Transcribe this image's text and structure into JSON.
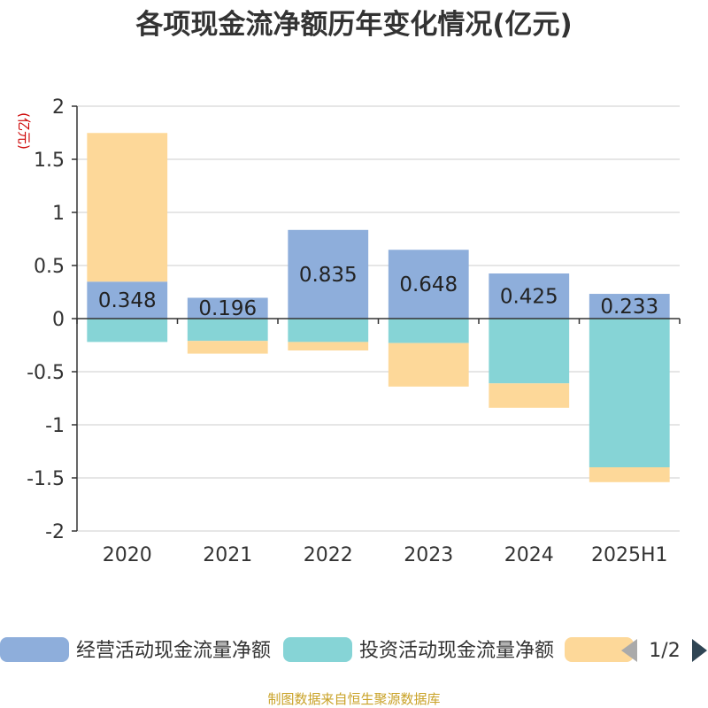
{
  "chart_data": {
    "type": "bar",
    "stacked": true,
    "title": "各项现金流净额历年变化情况(亿元)",
    "unit_label": "(亿元)",
    "categories": [
      "2020",
      "2021",
      "2022",
      "2023",
      "2024",
      "2025H1"
    ],
    "ylim": [
      -2,
      2
    ],
    "yticks": [
      "2",
      "1.5",
      "1",
      "0.5",
      "0",
      "-0.5",
      "-1",
      "-1.5",
      "-2"
    ],
    "ytick_values": [
      2,
      1.5,
      1,
      0.5,
      0,
      -0.5,
      -1,
      -1.5,
      -2
    ],
    "grid": true,
    "legend_position": "bottom",
    "series": [
      {
        "name": "经营活动现金流量净额",
        "color": "#8eaedb",
        "values": [
          0.348,
          0.196,
          0.835,
          0.648,
          0.425,
          0.233
        ],
        "labels": [
          "0.348",
          "0.196",
          "0.835",
          "0.648",
          "0.425",
          "0.233"
        ]
      },
      {
        "name": "投资活动现金流量净额",
        "color": "#86d4d6",
        "values": [
          -0.22,
          -0.21,
          -0.22,
          -0.23,
          -0.61,
          -1.4
        ]
      },
      {
        "color": "#fdd899",
        "values": [
          1.4,
          -0.12,
          -0.08,
          -0.41,
          -0.23,
          -0.14
        ]
      }
    ]
  },
  "legend": {
    "items": [
      {
        "label": "经营活动现金流量净额",
        "color": "#8eaedb"
      },
      {
        "label": "投资活动现金流量净额",
        "color": "#86d4d6"
      },
      {
        "label": "",
        "color": "#fdd899"
      }
    ],
    "page": "1/2"
  },
  "source": "制图数据来自恒生聚源数据库"
}
